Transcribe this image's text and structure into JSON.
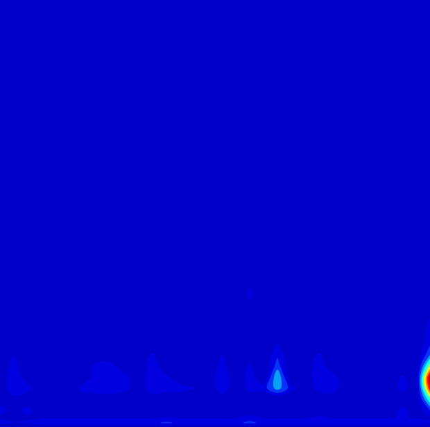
{
  "chart_data": {
    "type": "contour",
    "tick_labels": false,
    "x": [
      0,
      20,
      40,
      60,
      80,
      100,
      120,
      140,
      160,
      180,
      200,
      220,
      240,
      260,
      280,
      300,
      320,
      340,
      360,
      380,
      400,
      420,
      440,
      460,
      480,
      500,
      520,
      540,
      560,
      580,
      600,
      620
    ],
    "y": [
      0,
      6,
      14,
      24,
      40,
      56,
      72,
      88,
      104,
      120,
      150,
      190,
      260,
      360,
      480,
      616
    ],
    "xlim": [
      0,
      620
    ],
    "ylim": [
      0,
      616
    ],
    "color_range": [
      0,
      1
    ],
    "z": [
      [
        0,
        0,
        0,
        0,
        0,
        0,
        0,
        0,
        0,
        0,
        0,
        0,
        0,
        0,
        0,
        0,
        0,
        0,
        0,
        0,
        0,
        0,
        0,
        0,
        0,
        0,
        0,
        0,
        0,
        0,
        0,
        0
      ],
      [
        0.15,
        0.1,
        0.12,
        0.18,
        0.18,
        0.18,
        0.18,
        0.18,
        0.18,
        0.18,
        0.18,
        0.18,
        0.22,
        0.18,
        0.18,
        0.18,
        0.18,
        0.18,
        0.22,
        0.18,
        0.18,
        0.18,
        0.18,
        0.18,
        0.18,
        0.18,
        0.18,
        0.18,
        0.18,
        0.2,
        0.18,
        0.12
      ],
      [
        0.08,
        0.05,
        0.08,
        0.08,
        0.08,
        0.08,
        0.08,
        0.08,
        0.08,
        0.08,
        0.08,
        0.08,
        0.1,
        0.08,
        0.08,
        0.08,
        0.08,
        0.08,
        0.15,
        0.08,
        0.08,
        0.08,
        0.08,
        0.12,
        0.08,
        0.08,
        0.08,
        0.08,
        0.08,
        0.12,
        0.08,
        0.08
      ],
      [
        0.15,
        0.05,
        0.15,
        0,
        0,
        0,
        0,
        0,
        0,
        0,
        0,
        0,
        0,
        0,
        0,
        0,
        0,
        0,
        0,
        0,
        0,
        0,
        0,
        0,
        0,
        0,
        0,
        0,
        0,
        0.15,
        0,
        0.2
      ],
      [
        0.05,
        0.05,
        0,
        0,
        0,
        0,
        0,
        0,
        0,
        0,
        0,
        0,
        0,
        0,
        0,
        0,
        0,
        0,
        0,
        0,
        0,
        0,
        0,
        0,
        0,
        0,
        0,
        0,
        0,
        0,
        0,
        0.5
      ],
      [
        0,
        0.2,
        0.15,
        0,
        0,
        0,
        0.15,
        0.2,
        0.2,
        0.15,
        0,
        0.2,
        0.15,
        0.15,
        0.1,
        0,
        0.2,
        0,
        0.15,
        0.15,
        0.35,
        0.15,
        0,
        0.15,
        0.18,
        0,
        0,
        0,
        0,
        0.15,
        0,
        0.9
      ],
      [
        0,
        0.2,
        0,
        0,
        0,
        0,
        0,
        0.18,
        0.18,
        0.15,
        0,
        0.2,
        0.12,
        0,
        0,
        0,
        0.2,
        0,
        0.15,
        0,
        0.4,
        0,
        0,
        0.2,
        0.15,
        0,
        0,
        0,
        0,
        0.12,
        0,
        1.0
      ],
      [
        0,
        0.15,
        0,
        0,
        0,
        0,
        0,
        0.15,
        0.15,
        0,
        0,
        0.18,
        0,
        0,
        0,
        0,
        0.15,
        0,
        0.12,
        0,
        0.25,
        0,
        0,
        0.18,
        0,
        0,
        0,
        0,
        0,
        0,
        0,
        0.6
      ],
      [
        0,
        0.1,
        0,
        0,
        0,
        0,
        0,
        0,
        0,
        0,
        0,
        0.12,
        0,
        0,
        0,
        0,
        0.1,
        0,
        0,
        0,
        0.18,
        0,
        0,
        0.12,
        0,
        0,
        0,
        0,
        0,
        0,
        0,
        0.3
      ],
      [
        0,
        0,
        0,
        0,
        0,
        0,
        0,
        0,
        0,
        0,
        0,
        0,
        0,
        0,
        0,
        0,
        0,
        0,
        0,
        0,
        0.1,
        0,
        0,
        0,
        0,
        0,
        0,
        0,
        0,
        0,
        0,
        0.18
      ],
      [
        0,
        0,
        0,
        0,
        0,
        0,
        0,
        0,
        0,
        0,
        0,
        0,
        0,
        0,
        0,
        0,
        0,
        0,
        0,
        0,
        0,
        0,
        0,
        0,
        0,
        0,
        0,
        0,
        0,
        0,
        0,
        0.12
      ],
      [
        0,
        0,
        0,
        0,
        0,
        0,
        0,
        0,
        0,
        0,
        0,
        0,
        0,
        0,
        0,
        0,
        0,
        0,
        0.12,
        0,
        0,
        0,
        0,
        0,
        0,
        0,
        0,
        0,
        0,
        0,
        0,
        0
      ],
      [
        0,
        0,
        0,
        0,
        0,
        0,
        0,
        0,
        0,
        0,
        0,
        0,
        0,
        0,
        0,
        0,
        0,
        0,
        0,
        0,
        0,
        0,
        0,
        0,
        0,
        0,
        0,
        0,
        0,
        0,
        0,
        0
      ],
      [
        0,
        0,
        0,
        0,
        0,
        0,
        0,
        0,
        0,
        0,
        0,
        0,
        0,
        0,
        0,
        0,
        0,
        0,
        0,
        0,
        0,
        0,
        0,
        0,
        0,
        0,
        0,
        0,
        0,
        0,
        0,
        0
      ],
      [
        0,
        0,
        0,
        0,
        0,
        0,
        0,
        0,
        0,
        0,
        0,
        0,
        0,
        0,
        0,
        0,
        0,
        0,
        0,
        0,
        0,
        0,
        0,
        0,
        0,
        0,
        0,
        0,
        0,
        0,
        0,
        0
      ],
      [
        0,
        0,
        0,
        0,
        0,
        0,
        0,
        0,
        0,
        0,
        0,
        0,
        0,
        0,
        0,
        0,
        0,
        0,
        0,
        0,
        0,
        0,
        0,
        0,
        0,
        0,
        0,
        0,
        0,
        0,
        0,
        0
      ]
    ]
  }
}
